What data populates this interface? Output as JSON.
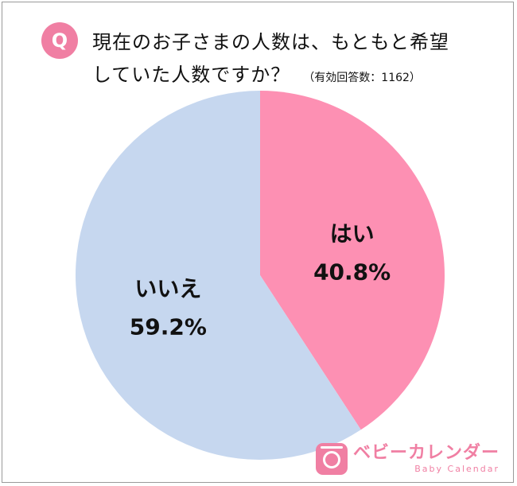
{
  "header": {
    "badge": "Q",
    "question_line1": "現在のお子さまの人数は、もともと希望",
    "question_line2": "していた人数ですか？",
    "respondents": "（有効回答数：1162）"
  },
  "chart_data": {
    "type": "pie",
    "title": "現在のお子さまの人数は、もともと希望していた人数ですか？",
    "respondents": 1162,
    "slices": [
      {
        "label": "はい",
        "value": 40.8,
        "display": "40.8%",
        "color": "#fd90b3"
      },
      {
        "label": "いいえ",
        "value": 59.2,
        "display": "59.2%",
        "color": "#c6d7ef"
      }
    ]
  },
  "brand": {
    "name_jp": "ベビーカレンダー",
    "name_en": "Baby Calendar",
    "color": "#f07fa3"
  }
}
